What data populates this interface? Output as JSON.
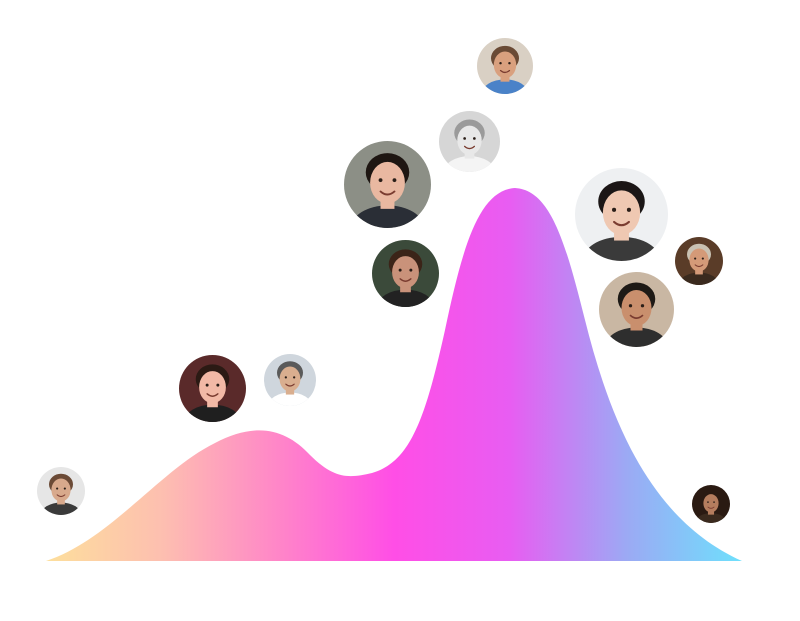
{
  "colors": {
    "gradient_stops": [
      "#fddf9c",
      "#fdbfb0",
      "#ff86c8",
      "#ff4ee6",
      "#e85df2",
      "#9ca9f4",
      "#6ee0fc"
    ]
  },
  "avatars": [
    {
      "name": "avatar-1",
      "bg": "#e6e6e6",
      "skin": "#d8a98c",
      "hair": "#6b4a36",
      "shirt": "#3a3a3a"
    },
    {
      "name": "avatar-2",
      "bg": "#5a2a2a",
      "skin": "#f2b9a6",
      "hair": "#2b1a14",
      "shirt": "#1f1f1f"
    },
    {
      "name": "avatar-3",
      "bg": "#cfd6dd",
      "skin": "#d9ae8f",
      "hair": "#5a5a5a",
      "shirt": "#ffffff"
    },
    {
      "name": "avatar-4",
      "bg": "#8c8f86",
      "skin": "#e9b8a1",
      "hair": "#1e1612",
      "shirt": "#2a2e36"
    },
    {
      "name": "avatar-5",
      "bg": "#d6d6d6",
      "skin": "#e8e8e8",
      "hair": "#9a9a9a",
      "shirt": "#f4f4f4"
    },
    {
      "name": "avatar-6",
      "bg": "#d9d0c4",
      "skin": "#d9a07e",
      "hair": "#6a4a35",
      "shirt": "#4a82c8"
    },
    {
      "name": "avatar-7",
      "bg": "#3b4a3a",
      "skin": "#c9927a",
      "hair": "#3b2418",
      "shirt": "#222222"
    },
    {
      "name": "avatar-8",
      "bg": "#eef0f2",
      "skin": "#efc8b2",
      "hair": "#1b1616",
      "shirt": "#3a3a3a"
    },
    {
      "name": "avatar-9",
      "bg": "#5a3c28",
      "skin": "#d49a78",
      "hair": "#c9c1b2",
      "shirt": "#3a2a1e"
    },
    {
      "name": "avatar-10",
      "bg": "#c9b7a3",
      "skin": "#c98f6d",
      "hair": "#1e1a16",
      "shirt": "#2e2e2e"
    },
    {
      "name": "avatar-11",
      "bg": "#2a1a12",
      "skin": "#b57d5e",
      "hair": "#2a1a12",
      "shirt": "#3a2a1e"
    }
  ]
}
